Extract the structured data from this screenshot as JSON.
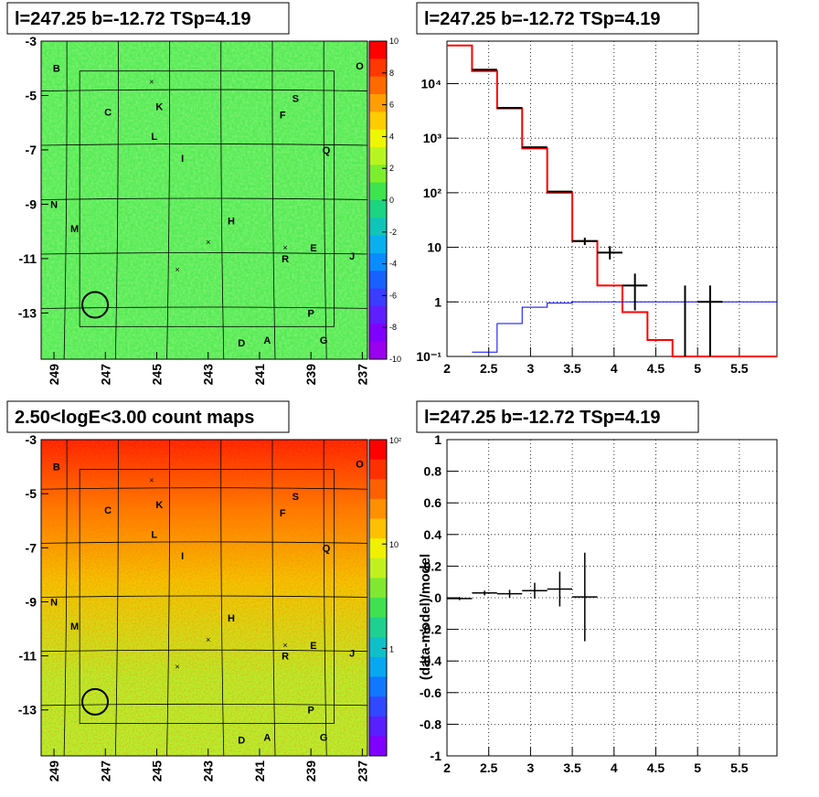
{
  "chart_data": [
    {
      "type": "heatmap",
      "title": "l=247.25 b=-12.72 TSp=4.19",
      "xlim": [
        249.5,
        236.8
      ],
      "ylim": [
        -14.7,
        -3
      ],
      "x_ticks": [
        "249",
        "247",
        "245",
        "243",
        "241",
        "239",
        "237"
      ],
      "y_ticks": [
        "-3",
        "-5",
        "-7",
        "-9",
        "-11",
        "-13"
      ],
      "colorbar": {
        "min": -10,
        "max": 10,
        "ticks": [
          "10",
          "8",
          "6",
          "4",
          "2",
          "0",
          "-2",
          "-4",
          "-6",
          "-8",
          "-10"
        ]
      },
      "grid_color": "#000000",
      "sources": [
        {
          "label": "B",
          "x": 248.9,
          "y": -4.0
        },
        {
          "label": "O",
          "x": 237.1,
          "y": -3.9
        },
        {
          "label": "S",
          "x": 239.6,
          "y": -5.1
        },
        {
          "label": "C",
          "x": 246.9,
          "y": -5.6
        },
        {
          "label": "K",
          "x": 244.9,
          "y": -5.4
        },
        {
          "label": "F",
          "x": 240.1,
          "y": -5.7
        },
        {
          "label": "L",
          "x": 245.1,
          "y": -6.5
        },
        {
          "label": "Q",
          "x": 238.4,
          "y": -7.0
        },
        {
          "label": "I",
          "x": 244.0,
          "y": -7.3
        },
        {
          "label": "N",
          "x": 249.0,
          "y": -9.0
        },
        {
          "label": "H",
          "x": 242.1,
          "y": -9.6
        },
        {
          "label": "M",
          "x": 248.2,
          "y": -9.9
        },
        {
          "label": "E",
          "x": 238.9,
          "y": -10.6
        },
        {
          "label": "R",
          "x": 240.0,
          "y": -11.0
        },
        {
          "label": "J",
          "x": 237.4,
          "y": -10.9
        },
        {
          "label": "P",
          "x": 239.0,
          "y": -13.0
        },
        {
          "label": "D",
          "x": 241.7,
          "y": -14.1
        },
        {
          "label": "A",
          "x": 240.7,
          "y": -14.0
        },
        {
          "label": "G",
          "x": 238.5,
          "y": -14.0
        }
      ],
      "crosses": [
        {
          "x": 245.2,
          "y": -4.5
        },
        {
          "x": 243.0,
          "y": -10.4
        },
        {
          "x": 244.2,
          "y": -11.4
        },
        {
          "x": 240.0,
          "y": -10.6
        }
      ],
      "circle": {
        "x": 247.4,
        "y": -12.7
      }
    },
    {
      "type": "line",
      "title": "l=247.25 b=-12.72 TSp=4.19",
      "yscale": "log",
      "xlim": [
        2,
        5.95
      ],
      "ylim": [
        0.1,
        60000
      ],
      "x_ticks": [
        "2",
        "2.5",
        "3",
        "3.5",
        "4",
        "4.5",
        "5",
        "5.5"
      ],
      "y_ticks": [
        "10⁻¹",
        "1",
        "10",
        "10²",
        "10³",
        "10⁴"
      ],
      "grid": true,
      "series": [
        {
          "type": "step",
          "color": "#ff0000",
          "edges": [
            2,
            2.3,
            2.6,
            2.9,
            3.2,
            3.5,
            3.8,
            4.1,
            4.4,
            4.7,
            5.95
          ],
          "values": [
            50000,
            17000,
            3500,
            650,
            100,
            13,
            2.0,
            0.65,
            0.2,
            0.1
          ]
        },
        {
          "type": "step",
          "color": "#0000ff",
          "edges": [
            2.3,
            2.6,
            2.9,
            3.2,
            3.5,
            3.8,
            4.1,
            4.4,
            4.7,
            5.95
          ],
          "values": [
            0.12,
            0.4,
            0.8,
            0.95,
            1.0,
            1.0,
            1.0,
            1.0,
            1.0
          ]
        },
        {
          "type": "errorbar",
          "color": "#000000",
          "x": [
            2.45,
            2.75,
            3.05,
            3.35,
            3.65,
            3.95,
            4.25,
            4.85,
            5.15
          ],
          "y": [
            18000,
            3600,
            680,
            105,
            13,
            8,
            2,
            1,
            1
          ],
          "ylo": [
            17800,
            3550,
            670,
            102,
            11,
            6,
            0.7,
            0.1,
            0.1
          ],
          "yhi": [
            18200,
            3650,
            690,
            108,
            15,
            10.5,
            3.3,
            2.0,
            2.0
          ],
          "xerr": [
            0.15,
            0.15,
            0.15,
            0.15,
            0.15,
            0.15,
            0.15,
            0,
            0.15
          ]
        }
      ]
    },
    {
      "type": "heatmap",
      "title": "2.50<logE<3.00 count maps",
      "xlim": [
        249.5,
        236.8
      ],
      "ylim": [
        -14.7,
        -3
      ],
      "x_ticks": [
        "249",
        "247",
        "245",
        "243",
        "241",
        "239",
        "237"
      ],
      "y_ticks": [
        "-3",
        "-5",
        "-7",
        "-9",
        "-11",
        "-13"
      ],
      "colorbar": {
        "scale": "log",
        "ticks": [
          "10²",
          "10",
          "1"
        ]
      },
      "grid_color": "#000000"
    },
    {
      "type": "scatter",
      "title": "l=247.25 b=-12.72 TSp=4.19",
      "ylabel": "(data-model)/model",
      "xlim": [
        2,
        5.95
      ],
      "ylim": [
        -1,
        1
      ],
      "x_ticks": [
        "2",
        "2.5",
        "3",
        "3.5",
        "4",
        "4.5",
        "5",
        "5.5"
      ],
      "y_ticks": [
        "1",
        "0.8",
        "0.6",
        "0.4",
        "0.2",
        "0",
        "-0.2",
        "-0.4",
        "-0.6",
        "-0.8",
        "-1"
      ],
      "grid": true,
      "points": [
        {
          "x": 2.15,
          "y": -0.005,
          "yerr": 0.01,
          "xerr": 0.15
        },
        {
          "x": 2.45,
          "y": 0.03,
          "yerr": 0.015,
          "xerr": 0.15
        },
        {
          "x": 2.75,
          "y": 0.025,
          "yerr": 0.025,
          "xerr": 0.15
        },
        {
          "x": 3.05,
          "y": 0.045,
          "yerr": 0.05,
          "xerr": 0.15
        },
        {
          "x": 3.35,
          "y": 0.055,
          "yerr": 0.11,
          "xerr": 0.15
        },
        {
          "x": 3.65,
          "y": 0.005,
          "yerr": 0.28,
          "xerr": 0.15
        }
      ]
    }
  ]
}
